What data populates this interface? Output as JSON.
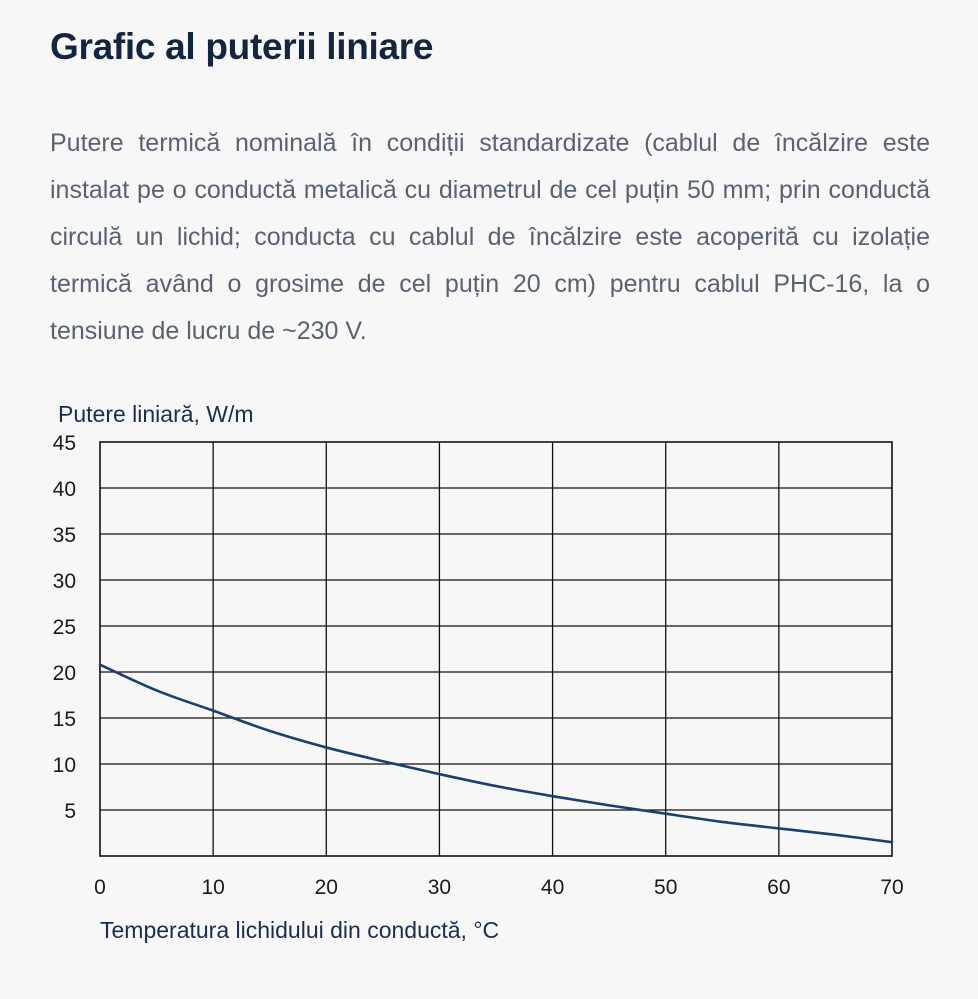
{
  "page": {
    "title": "Grafic al puterii liniare",
    "description": "Putere termică nominală în condiții standardizate (cablul de încălzire este instalat pe o conductă metalică cu diametrul de cel puțin 50 mm; prin conductă circulă un lichid; conducta cu cablul de încălzire este acoperită cu izolație termică având o grosime de cel puțin 20 cm) pentru cablul PHC-16, la o tensiune de lucru de ~230 V."
  },
  "colors": {
    "line": "#1b3f6e",
    "grid": "#111111",
    "title": "#14263f",
    "text": "#5a6270"
  },
  "chart_data": {
    "type": "line",
    "title": "",
    "ylabel": "Putere liniară, W/m",
    "xlabel": "Temperatura lichidului din conductă, °C",
    "xlim": [
      0,
      70
    ],
    "ylim": [
      0,
      45
    ],
    "xticks": [
      "0",
      "10",
      "20",
      "30",
      "40",
      "50",
      "60",
      "70"
    ],
    "yticks": [
      "5",
      "10",
      "15",
      "20",
      "25",
      "30",
      "35",
      "40",
      "45"
    ],
    "grid": true,
    "series": [
      {
        "x": [
          0,
          5,
          10,
          15,
          20,
          25,
          30,
          35,
          40,
          45,
          50,
          55,
          60,
          65,
          70
        ],
        "values": [
          20.8,
          18,
          15.8,
          13.6,
          11.8,
          10.3,
          8.9,
          7.6,
          6.5,
          5.5,
          4.6,
          3.7,
          3.0,
          2.3,
          1.5
        ]
      }
    ]
  }
}
